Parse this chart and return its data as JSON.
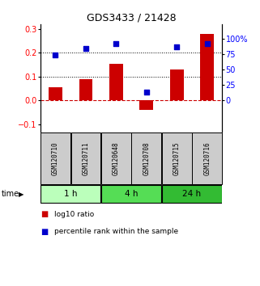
{
  "title": "GDS3433 / 21428",
  "samples": [
    "GSM120710",
    "GSM120711",
    "GSM120648",
    "GSM120708",
    "GSM120715",
    "GSM120716"
  ],
  "log10_ratio": [
    0.055,
    0.09,
    0.155,
    -0.04,
    0.13,
    0.28
  ],
  "percentile_rank": [
    0.74,
    0.845,
    0.92,
    0.13,
    0.87,
    0.92
  ],
  "bar_color": "#cc0000",
  "dot_color": "#0000cc",
  "left_yticks": [
    -0.1,
    0.0,
    0.1,
    0.2,
    0.3
  ],
  "left_ylim": [
    -0.13,
    0.32
  ],
  "hline_zero_color": "#cc0000",
  "hline_dotted_vals": [
    0.1,
    0.2
  ],
  "groups": [
    {
      "label": "1 h",
      "samples": [
        0,
        1
      ],
      "color": "#bbffbb"
    },
    {
      "label": "4 h",
      "samples": [
        2,
        3
      ],
      "color": "#55dd55"
    },
    {
      "label": "24 h",
      "samples": [
        4,
        5
      ],
      "color": "#33bb33"
    }
  ],
  "time_label": "time",
  "legend_ratio_label": "log10 ratio",
  "legend_pct_label": "percentile rank within the sample",
  "sample_box_color": "#cccccc",
  "background_color": "#ffffff"
}
